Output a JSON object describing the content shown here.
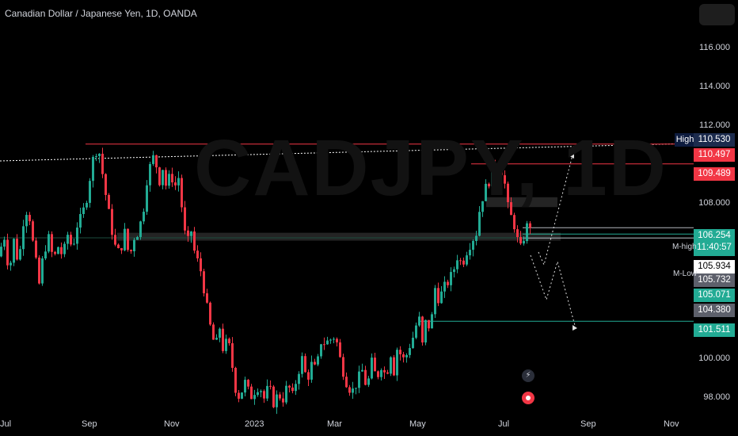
{
  "header": {
    "title": "Canadian Dollar / Japanese Yen, 1D, OANDA",
    "watermark": "CADJPY, 1D"
  },
  "chart_data": {
    "type": "candlestick",
    "symbol": "CADJPY",
    "interval": "1D",
    "ylim": [
      96.9,
      117.8
    ],
    "y_ticks": [
      "116.000",
      "114.000",
      "112.000",
      "108.000",
      "100.000",
      "98.000"
    ],
    "x_ticks": [
      "Jul",
      "Sep",
      "Nov",
      "2023",
      "Mar",
      "May",
      "Jul",
      "Sep",
      "Nov"
    ],
    "price_path": [
      [
        0,
        104.8
      ],
      [
        8,
        105.8
      ],
      [
        14,
        104.0
      ],
      [
        20,
        105.6
      ],
      [
        26,
        104.4
      ],
      [
        32,
        106.6
      ],
      [
        38,
        107.4
      ],
      [
        44,
        105.5
      ],
      [
        52,
        103.4
      ],
      [
        58,
        105.1
      ],
      [
        64,
        105.7
      ],
      [
        70,
        104.6
      ],
      [
        76,
        105.3
      ],
      [
        82,
        104.8
      ],
      [
        88,
        105.9
      ],
      [
        94,
        105.2
      ],
      [
        100,
        106.4
      ],
      [
        106,
        106.8
      ],
      [
        112,
        107.8
      ],
      [
        118,
        109.3
      ],
      [
        122,
        110.1
      ],
      [
        127,
        110.3
      ],
      [
        132,
        109.0
      ],
      [
        138,
        107.4
      ],
      [
        144,
        106.1
      ],
      [
        150,
        104.9
      ],
      [
        155,
        105.2
      ],
      [
        160,
        106.0
      ],
      [
        166,
        104.7
      ],
      [
        172,
        105.8
      ],
      [
        178,
        106.1
      ],
      [
        184,
        107.3
      ],
      [
        188,
        108.7
      ],
      [
        193,
        109.5
      ],
      [
        198,
        110.0
      ],
      [
        203,
        108.5
      ],
      [
        208,
        109.3
      ],
      [
        213,
        108.2
      ],
      [
        218,
        109.1
      ],
      [
        223,
        108.3
      ],
      [
        229,
        108.9
      ],
      [
        234,
        106.3
      ],
      [
        239,
        105.4
      ],
      [
        244,
        106.1
      ],
      [
        249,
        104.8
      ],
      [
        255,
        104.3
      ],
      [
        260,
        103.2
      ],
      [
        265,
        101.9
      ],
      [
        270,
        100.8
      ],
      [
        275,
        100.2
      ],
      [
        280,
        101.2
      ],
      [
        285,
        99.9
      ],
      [
        290,
        100.7
      ],
      [
        296,
        99.2
      ],
      [
        302,
        97.6
      ],
      [
        308,
        98.0
      ],
      [
        313,
        98.5
      ],
      [
        318,
        97.6
      ],
      [
        324,
        98.0
      ],
      [
        330,
        98.3
      ],
      [
        336,
        97.6
      ],
      [
        342,
        98.2
      ],
      [
        348,
        97.4
      ],
      [
        354,
        97.8
      ],
      [
        360,
        97.6
      ],
      [
        366,
        98.3
      ],
      [
        372,
        97.7
      ],
      [
        378,
        98.8
      ],
      [
        384,
        99.6
      ],
      [
        390,
        98.5
      ],
      [
        396,
        99.3
      ],
      [
        402,
        99.0
      ],
      [
        408,
        100.5
      ],
      [
        414,
        100.4
      ],
      [
        420,
        100.6
      ],
      [
        426,
        100.8
      ],
      [
        432,
        99.6
      ],
      [
        436,
        99.0
      ],
      [
        442,
        98.2
      ],
      [
        448,
        98.0
      ],
      [
        454,
        98.5
      ],
      [
        460,
        99.0
      ],
      [
        466,
        98.1
      ],
      [
        472,
        99.4
      ],
      [
        478,
        98.6
      ],
      [
        484,
        99.3
      ],
      [
        490,
        98.7
      ],
      [
        496,
        99.9
      ],
      [
        500,
        99.0
      ],
      [
        505,
        100.4
      ],
      [
        510,
        99.5
      ],
      [
        515,
        99.7
      ],
      [
        520,
        100.3
      ],
      [
        526,
        100.9
      ],
      [
        531,
        101.9
      ],
      [
        536,
        100.3
      ],
      [
        541,
        101.7
      ],
      [
        546,
        101.0
      ],
      [
        552,
        103.2
      ],
      [
        557,
        102.6
      ],
      [
        562,
        103.1
      ],
      [
        568,
        103.5
      ],
      [
        574,
        103.9
      ],
      [
        580,
        104.8
      ],
      [
        586,
        104.4
      ],
      [
        592,
        105.1
      ],
      [
        598,
        105.6
      ],
      [
        604,
        106.0
      ],
      [
        609,
        107.4
      ],
      [
        614,
        108.1
      ],
      [
        619,
        108.5
      ],
      [
        624,
        109.2
      ],
      [
        629,
        109.1
      ],
      [
        634,
        109.4
      ],
      [
        639,
        108.8
      ],
      [
        643,
        107.4
      ],
      [
        648,
        106.8
      ],
      [
        653,
        106.3
      ],
      [
        657,
        105.4
      ],
      [
        661,
        105.1
      ],
      [
        665,
        106.0
      ],
      [
        669,
        106.4
      ]
    ],
    "zones": [
      {
        "name": "resistance-zone",
        "from": 107.3,
        "to": 107.8,
        "x1": "2023-06-27",
        "x2": "2023-07-20"
      },
      {
        "name": "support-zone",
        "from": 105.6,
        "to": 106.0,
        "x1": "2022-09-15",
        "x2": "2023-07-25"
      }
    ],
    "levels": [
      {
        "name": "high-trendline",
        "price": 110.53,
        "label": "High",
        "color": "#ffffff"
      },
      {
        "name": "red-resistance-1",
        "price": 110.497,
        "color": "#f23645"
      },
      {
        "name": "red-resistance-2",
        "price": 109.489,
        "color": "#f23645"
      },
      {
        "name": "m-high",
        "price": 106.254,
        "label": "M-high",
        "color": "#b2b5be"
      },
      {
        "name": "green-level",
        "price": 105.934,
        "color": "#22ab94"
      },
      {
        "name": "m-low",
        "price": 105.732,
        "label": "M-Low",
        "color": "#b2b5be"
      },
      {
        "name": "green-support",
        "price": 101.511,
        "color": "#22ab94"
      }
    ],
    "price_labels": [
      {
        "name": "high-price-label",
        "text": "110.530",
        "bg": "#1c2b4d",
        "color": "#ffffff",
        "price": 110.53
      },
      {
        "name": "red-price-label-1",
        "text": "110.497",
        "bg": "#f23645",
        "color": "#ffffff",
        "price": 110.497
      },
      {
        "name": "red-price-label-2",
        "text": "109.489",
        "bg": "#f23645",
        "color": "#ffffff",
        "price": 109.489
      },
      {
        "name": "current-price-label",
        "text": "106.254",
        "bg": "#22ab94",
        "color": "#ffffff",
        "price": 106.254
      },
      {
        "name": "countdown-label",
        "text": "11:40:57",
        "bg": "#22ab94",
        "color": "#ffffff",
        "price": 106.0
      },
      {
        "name": "green-level-label",
        "text": "105.934",
        "bg": "#ffffff",
        "color": "#000000",
        "price": 105.934
      },
      {
        "name": "m-low-price-label",
        "text": "105.732",
        "bg": "#5d606b",
        "color": "#ffffff",
        "price": 105.732
      },
      {
        "name": "green-price-label-2",
        "text": "105.071",
        "bg": "#22ab94",
        "color": "#ffffff",
        "price": 105.071
      },
      {
        "name": "grey-price-label",
        "text": "104.380",
        "bg": "#5d606b",
        "color": "#ffffff",
        "price": 104.38
      },
      {
        "name": "support-price-label",
        "text": "101.511",
        "bg": "#22ab94",
        "color": "#ffffff",
        "price": 101.511
      }
    ],
    "colors": {
      "up": "#22ab94",
      "down": "#f23645",
      "background": "#000000"
    }
  }
}
